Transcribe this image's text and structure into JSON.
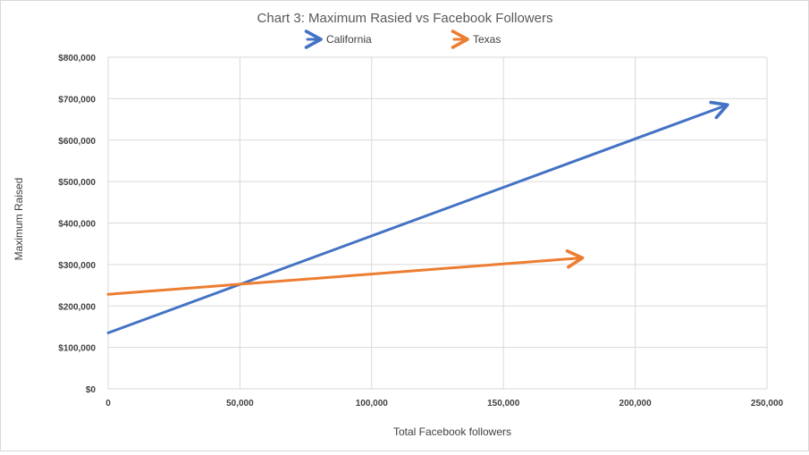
{
  "chart_data": {
    "type": "line",
    "title": "Chart 3: Maximum Rasied vs Facebook Followers",
    "xlabel": "Total Facebook followers",
    "ylabel": "Maximum Raised",
    "xlim": [
      0,
      250000
    ],
    "ylim": [
      0,
      800000
    ],
    "x_ticks": [
      0,
      50000,
      100000,
      150000,
      200000,
      250000
    ],
    "x_tick_labels": [
      "0",
      "50,000",
      "100,000",
      "150,000",
      "200,000",
      "250,000"
    ],
    "y_ticks": [
      0,
      100000,
      200000,
      300000,
      400000,
      500000,
      600000,
      700000,
      800000
    ],
    "y_tick_labels": [
      "$0",
      "$100,000",
      "$200,000",
      "$300,000",
      "$400,000",
      "$500,000",
      "$600,000",
      "$700,000",
      "$800,000"
    ],
    "grid": true,
    "legend_position": "top",
    "series": [
      {
        "name": "California",
        "color": "#4472C4",
        "x": [
          0,
          235000
        ],
        "y": [
          135000,
          685000
        ]
      },
      {
        "name": "Texas",
        "color": "#ED7D31",
        "x": [
          0,
          180000
        ],
        "y": [
          228000,
          316000
        ]
      }
    ]
  }
}
